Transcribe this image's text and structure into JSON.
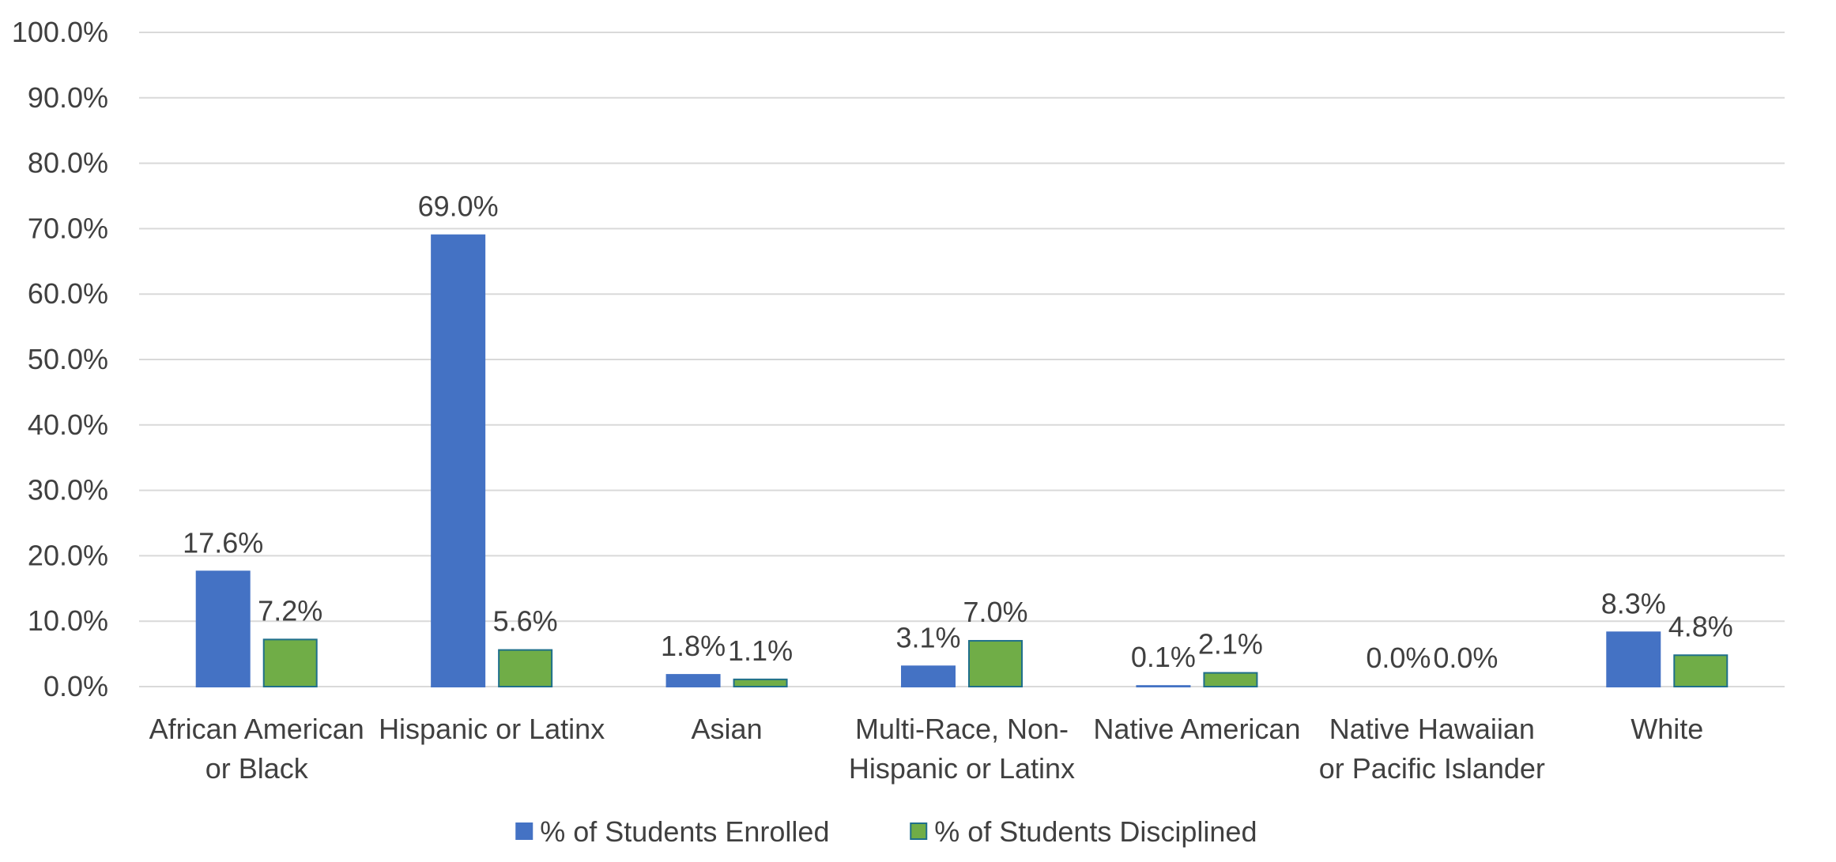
{
  "chart_data": {
    "type": "bar",
    "title": "",
    "xlabel": "",
    "ylabel": "",
    "ylim": [
      0,
      100
    ],
    "y_ticks": [
      "0.0%",
      "10.0%",
      "20.0%",
      "30.0%",
      "40.0%",
      "50.0%",
      "60.0%",
      "70.0%",
      "80.0%",
      "90.0%",
      "100.0%"
    ],
    "grid": true,
    "legend_position": "bottom-center",
    "categories": [
      [
        "African American",
        "or Black"
      ],
      [
        "Hispanic or Latinx"
      ],
      [
        "Asian"
      ],
      [
        "Multi-Race, Non-",
        "Hispanic or Latinx"
      ],
      [
        "Native American"
      ],
      [
        "Native Hawaiian",
        "or Pacific Islander"
      ],
      [
        "White"
      ]
    ],
    "series": [
      {
        "name": "% of Students Enrolled",
        "color": "#4472c4",
        "stroke": "#4472c4",
        "values": [
          17.6,
          69.0,
          1.8,
          3.1,
          0.1,
          0.0,
          8.3
        ],
        "labels": [
          "17.6%",
          "69.0%",
          "1.8%",
          "3.1%",
          "0.1%",
          "0.0%",
          "8.3%"
        ]
      },
      {
        "name": "% of Students Disciplined",
        "color": "#70ad47",
        "stroke": "#1f6f8b",
        "values": [
          7.2,
          5.6,
          1.1,
          7.0,
          2.1,
          0.0,
          4.8
        ],
        "labels": [
          "7.2%",
          "5.6%",
          "1.1%",
          "7.0%",
          "2.1%",
          "0.0%",
          "4.8%"
        ]
      }
    ]
  }
}
